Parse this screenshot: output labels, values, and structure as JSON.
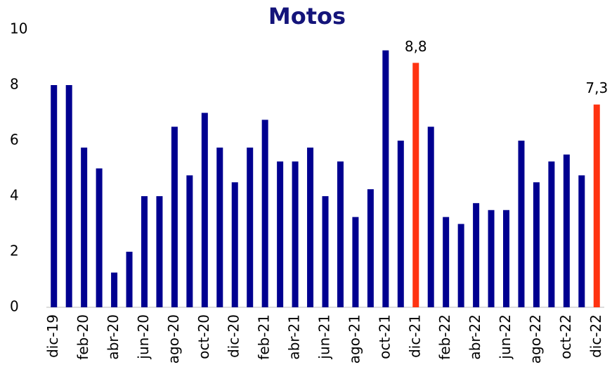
{
  "chart_data": {
    "type": "bar",
    "title": "Motos",
    "categories": [
      "dic-19",
      null,
      "feb-20",
      null,
      "abr-20",
      null,
      "jun-20",
      null,
      "ago-20",
      null,
      "oct-20",
      null,
      "dic-20",
      null,
      "feb-21",
      null,
      "abr-21",
      null,
      "jun-21",
      null,
      "ago-21",
      null,
      "oct-21",
      null,
      "dic-21",
      null,
      "feb-22",
      null,
      "abr-22",
      null,
      "jun-22",
      null,
      "ago-22",
      null,
      "oct-22",
      null,
      "dic-22"
    ],
    "values": [
      8,
      8,
      5.75,
      5,
      1.25,
      2,
      4,
      4,
      6.5,
      4.75,
      7,
      5.75,
      4.5,
      5.75,
      6.75,
      5.25,
      5.25,
      5.75,
      4,
      5.25,
      3.25,
      4.25,
      9.25,
      6,
      8.8,
      6.5,
      3.25,
      3,
      3.75,
      3.5,
      3.5,
      6,
      4.5,
      5.25,
      5.5,
      4.75,
      7.3
    ],
    "value_labels": [
      null,
      null,
      null,
      null,
      null,
      null,
      null,
      null,
      null,
      null,
      null,
      null,
      null,
      null,
      null,
      null,
      null,
      null,
      null,
      null,
      null,
      null,
      null,
      null,
      "8,8",
      null,
      null,
      null,
      null,
      null,
      null,
      null,
      null,
      null,
      null,
      null,
      "7,3"
    ],
    "colors": [
      "#000090",
      "#000090",
      "#000090",
      "#000090",
      "#000090",
      "#000090",
      "#000090",
      "#000090",
      "#000090",
      "#000090",
      "#000090",
      "#000090",
      "#000090",
      "#000090",
      "#000090",
      "#000090",
      "#000090",
      "#000090",
      "#000090",
      "#000090",
      "#000090",
      "#000090",
      "#000090",
      "#000090",
      "#ff3311",
      "#000090",
      "#000090",
      "#000090",
      "#000090",
      "#000090",
      "#000090",
      "#000090",
      "#000090",
      "#000090",
      "#000090",
      "#000090",
      "#ff3311"
    ],
    "ylim": [
      0,
      10
    ],
    "yticks": [
      0,
      2,
      4,
      6,
      8,
      10
    ],
    "grid": false
  }
}
